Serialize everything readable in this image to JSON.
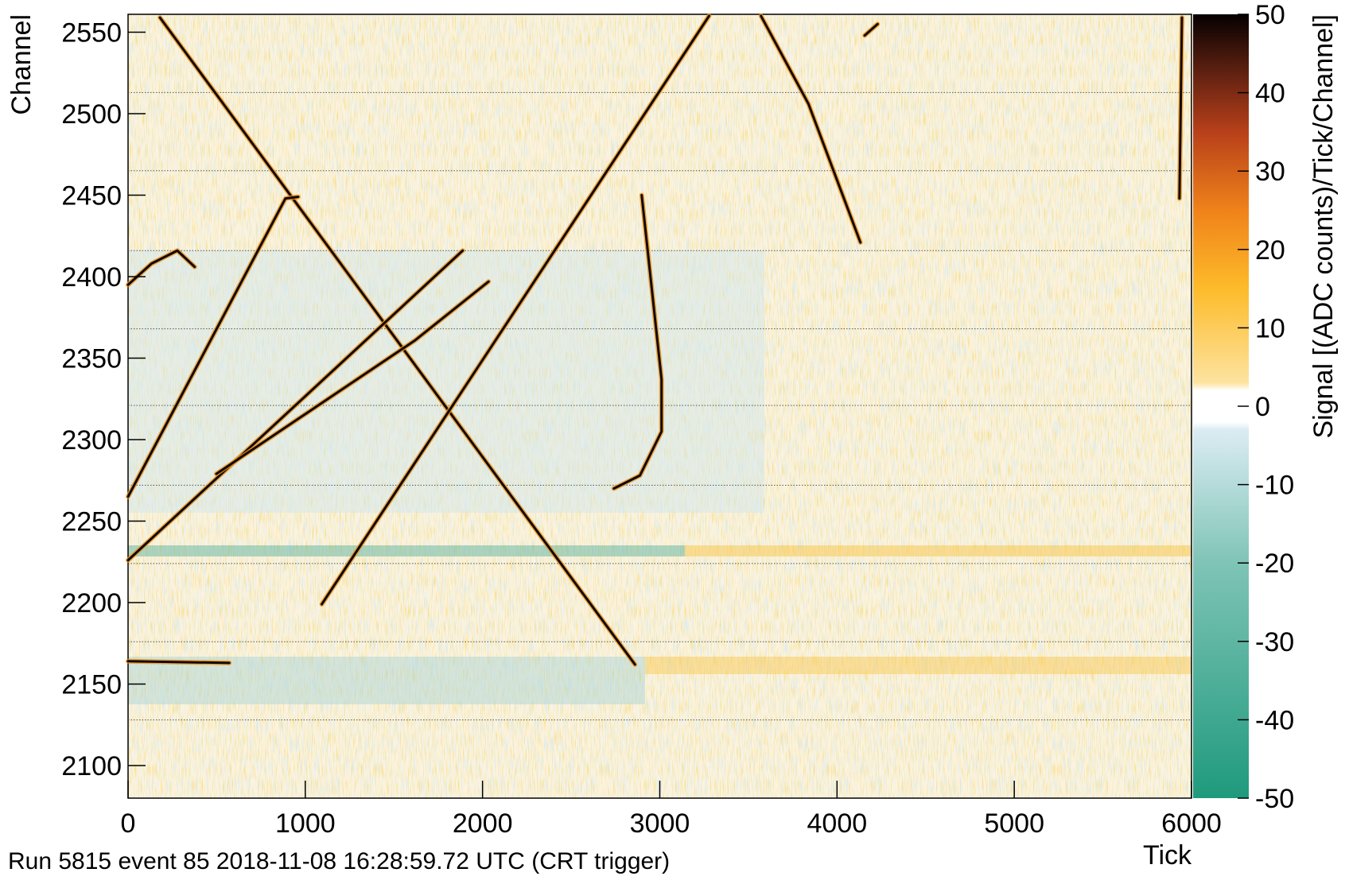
{
  "chart_data": {
    "type": "heatmap",
    "x_label": "Tick",
    "y_label": "Channel",
    "colorbar_label": "Signal [(ADC counts)/Tick/Channel]",
    "footer": "Run 5815 event 85 2018-11-08 16:28:59.72 UTC (CRT trigger)",
    "xlim": [
      0,
      6000
    ],
    "xticks": [
      0,
      1000,
      2000,
      3000,
      4000,
      5000,
      6000
    ],
    "ylim": [
      2080,
      2561
    ],
    "yticks": [
      2100,
      2150,
      2200,
      2250,
      2300,
      2350,
      2400,
      2450,
      2500,
      2550
    ],
    "zlim": [
      -50,
      50
    ],
    "zticks": [
      -50,
      -40,
      -30,
      -20,
      -10,
      0,
      10,
      20,
      30,
      40,
      50
    ],
    "boundaries": [
      2128,
      2176,
      2224,
      2272,
      2321,
      2368,
      2416,
      2465,
      2513
    ],
    "tracks": [
      {
        "x": [
          180,
          2860
        ],
        "y": [
          2559,
          2162
        ]
      },
      {
        "x": [
          0,
          1888
        ],
        "y": [
          2226,
          2416
        ]
      },
      {
        "x": [
          498,
          1620,
          2034
        ],
        "y": [
          2279,
          2361,
          2397
        ]
      },
      {
        "x": [
          1093,
          3278
        ],
        "y": [
          2199,
          2560
        ]
      },
      {
        "x": [
          0,
          888,
          960
        ],
        "y": [
          2265,
          2448,
          2449
        ]
      },
      {
        "x": [
          0,
          132,
          278,
          376
        ],
        "y": [
          2395,
          2408,
          2416,
          2406
        ]
      },
      {
        "x": [
          2898,
          3010,
          3010,
          2888,
          2741
        ],
        "y": [
          2450,
          2337,
          2305,
          2278,
          2270
        ]
      },
      {
        "x": [
          3571,
          3839,
          4132
        ],
        "y": [
          2560,
          2506,
          2421
        ]
      },
      {
        "x": [
          5946,
          5932
        ],
        "y": [
          2559,
          2448
        ]
      },
      {
        "x": [
          0,
          571
        ],
        "y": [
          2164,
          2163
        ]
      },
      {
        "x": [
          4156,
          4229
        ],
        "y": [
          2548,
          2555
        ]
      }
    ]
  }
}
